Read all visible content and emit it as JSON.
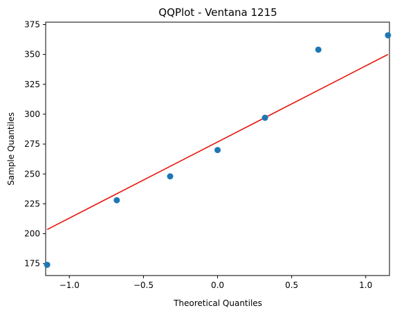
{
  "chart_data": {
    "type": "scatter",
    "title": "QQPlot - Ventana 1215",
    "xlabel": "Theoretical Quantiles",
    "ylabel": "Sample Quantiles",
    "xlim": [
      -1.16,
      1.16
    ],
    "ylim": [
      165,
      377
    ],
    "grid": false,
    "x_ticks": [
      -1.0,
      -0.5,
      0.0,
      0.5,
      1.0
    ],
    "x_tick_labels": [
      "−1.0",
      "−0.5",
      "0.0",
      "0.5",
      "1.0"
    ],
    "y_ticks": [
      175,
      200,
      225,
      250,
      275,
      300,
      325,
      350,
      375
    ],
    "y_tick_labels": [
      "175",
      "200",
      "225",
      "250",
      "275",
      "300",
      "325",
      "350",
      "375"
    ],
    "points": {
      "color": "#1f77b4",
      "x": [
        -1.15,
        -0.68,
        -0.32,
        0.0,
        0.32,
        0.68,
        1.15
      ],
      "y": [
        174,
        228,
        248,
        270,
        297,
        354,
        366
      ]
    },
    "fit_line": {
      "color": "#e8160c",
      "x": [
        -1.15,
        1.15
      ],
      "y": [
        203.5,
        350.0
      ]
    }
  }
}
